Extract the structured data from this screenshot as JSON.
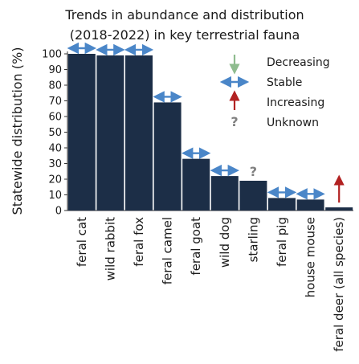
{
  "chart_data": {
    "type": "bar",
    "title": "Trends in abundance and distribution",
    "subtitle": "(2018-2022) in key terrestrial fauna",
    "ylabel": "Statewide distribution (%)",
    "xlabel": "",
    "ylim": [
      0,
      100
    ],
    "yticks": [
      0,
      10,
      20,
      30,
      40,
      50,
      60,
      70,
      80,
      90,
      100
    ],
    "grid": false,
    "categories": [
      "feral cat",
      "wild rabbit",
      "feral fox",
      "feral camel",
      "feral goat",
      "wild dog",
      "starling",
      "feral pig",
      "house mouse",
      "feral deer (all species)"
    ],
    "values": [
      100,
      99,
      99,
      69,
      33,
      22,
      19,
      8,
      7,
      2
    ],
    "trends": [
      "Stable",
      "Stable",
      "Stable",
      "Stable",
      "Stable",
      "Stable",
      "Unknown",
      "Stable",
      "Stable",
      "Increasing"
    ],
    "bar_color": "#1c2e47",
    "legend": {
      "placement": "top-right",
      "entries": [
        {
          "label": "Decreasing",
          "icon": "arrow-down-icon",
          "color": "#8fbc8f"
        },
        {
          "label": "Stable",
          "icon": "double-arrow-icon",
          "color": "#4a86c8"
        },
        {
          "label": "Increasing",
          "icon": "arrow-up-icon",
          "color": "#b22222"
        },
        {
          "label": "Unknown",
          "icon": "question-mark-icon",
          "color": "#808080"
        }
      ]
    },
    "unknown_symbol": "?"
  }
}
